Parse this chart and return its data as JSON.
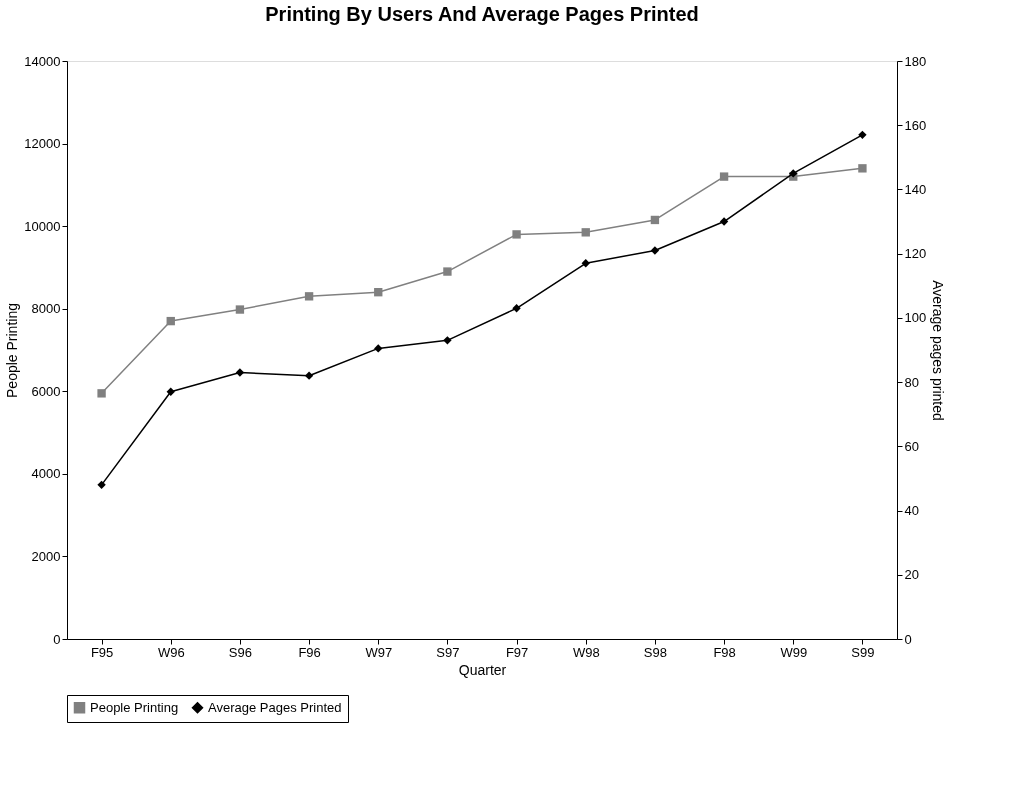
{
  "chart_data": {
    "type": "line",
    "title": "Printing By Users And Average Pages Printed",
    "xlabel": "Quarter",
    "ylabel": "People Printing",
    "y2label": "Average pages printed",
    "categories": [
      "F95",
      "W96",
      "S96",
      "F96",
      "W97",
      "S97",
      "F97",
      "W98",
      "S98",
      "F98",
      "W99",
      "S99"
    ],
    "series": [
      {
        "name": "People Printing",
        "color": "#808080",
        "marker": "square",
        "values": [
          5950,
          7700,
          7980,
          8300,
          8400,
          8900,
          9800,
          9850,
          10150,
          11200,
          11200,
          11400
        ]
      },
      {
        "name": "Average Pages Printed",
        "color": "#000000",
        "marker": "diamond",
        "axis": "y2",
        "values": [
          48,
          77,
          83,
          82,
          90.5,
          93,
          103,
          117,
          121,
          130,
          145,
          157
        ]
      }
    ],
    "ylim": [
      0,
      14000
    ],
    "yticks": [
      0,
      2000,
      4000,
      6000,
      8000,
      10000,
      12000,
      14000
    ],
    "y2lim": [
      0,
      180
    ],
    "y2ticks": [
      0,
      20,
      40,
      60,
      80,
      100,
      120,
      140,
      160,
      180
    ],
    "grid": false,
    "legend": "bottom"
  }
}
